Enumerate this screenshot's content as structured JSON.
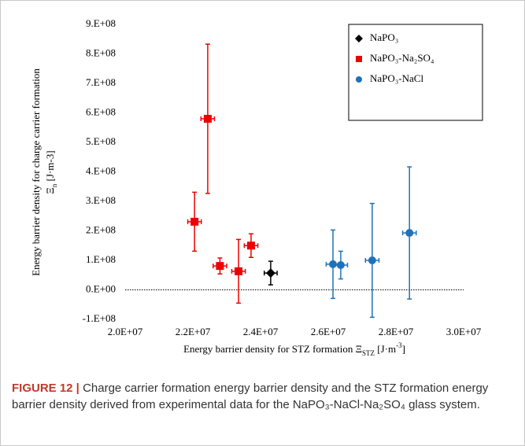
{
  "chart_data": {
    "type": "errorbar-scatter",
    "x_label": [
      {
        "text": "Energy barrier density for STZ formation Ξ",
        "style": "normal"
      },
      {
        "text": "STZ",
        "style": "sub"
      },
      {
        "text": "  [J·m",
        "style": "normal"
      },
      {
        "text": "-3",
        "style": "sup"
      },
      {
        "text": "]",
        "style": "normal"
      }
    ],
    "y_label": [
      "Energy barrier density for charge carrier formation",
      [
        {
          "text": "Ξ",
          "style": "normal"
        },
        {
          "text": "n",
          "style": "sub"
        },
        {
          "text": "  [J·m-3]",
          "style": "normal"
        }
      ]
    ],
    "xlim": [
      20000000,
      30000000
    ],
    "xticks": [
      {
        "value": 20000000,
        "label": "2.0E+07"
      },
      {
        "value": 22000000,
        "label": "2.2E+07"
      },
      {
        "value": 24000000,
        "label": "2.4E+07"
      },
      {
        "value": 26000000,
        "label": "2.6E+07"
      },
      {
        "value": 28000000,
        "label": "2.8E+07"
      },
      {
        "value": 30000000,
        "label": "3.0E+07"
      }
    ],
    "ylim": [
      -100000000,
      900000000
    ],
    "yticks": [
      {
        "value": -100000000,
        "label": "-1.E+08"
      },
      {
        "value": 0,
        "label": "0.E+00"
      },
      {
        "value": 100000000,
        "label": "1.E+08"
      },
      {
        "value": 200000000,
        "label": "2.E+08"
      },
      {
        "value": 300000000,
        "label": "3.E+08"
      },
      {
        "value": 400000000,
        "label": "4.E+08"
      },
      {
        "value": 500000000,
        "label": "5.E+08"
      },
      {
        "value": 600000000,
        "label": "6.E+08"
      },
      {
        "value": 700000000,
        "label": "7.E+08"
      },
      {
        "value": 800000000,
        "label": "8.E+08"
      },
      {
        "value": 900000000,
        "label": "9.E+08"
      }
    ],
    "zero_line": true,
    "legend": "top-right",
    "series": [
      {
        "name": "NaPO₃",
        "color": "#000000",
        "marker": "diamond",
        "x": [
          24300000
        ],
        "values": [
          57000000
        ],
        "xerr": [
          190000
        ],
        "yerr": [
          40000000
        ]
      },
      {
        "name": "NaPO₃-Na₂SO₄",
        "color": "#ee0000",
        "marker": "square",
        "x": [
          22050000,
          22440000,
          22800000,
          23350000,
          23720000
        ],
        "values": [
          231000000,
          580000000,
          81000000,
          63000000,
          150000000
        ],
        "xerr": [
          200000,
          200000,
          200000,
          200000,
          200000
        ],
        "yerr": [
          100000000,
          253000000,
          27000000,
          108000000,
          40000000
        ]
      },
      {
        "name": "NaPO₃-NaCl",
        "color": "#1f72b8",
        "marker": "circle",
        "x": [
          26140000,
          26370000,
          27300000,
          28400000
        ],
        "values": [
          87000000,
          84000000,
          100000000,
          193000000
        ],
        "xerr": [
          200000,
          200000,
          200000,
          200000
        ],
        "yerr": [
          116000000,
          47000000,
          193000000,
          224000000
        ]
      }
    ]
  },
  "caption": {
    "label": "FIGURE 12 |",
    "text": "Charge carrier formation energy barrier density and the STZ formation energy barrier density derived from experimental data for the NaPO₃-NaCl-Na₂SO₄ glass system."
  }
}
